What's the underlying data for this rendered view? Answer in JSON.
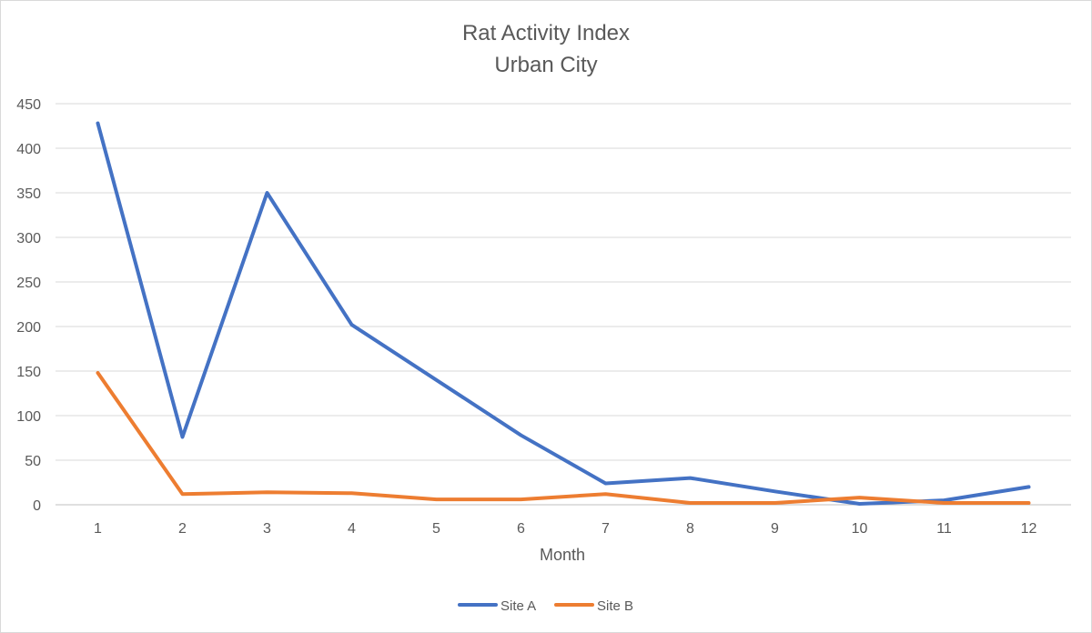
{
  "chart_data": {
    "type": "line",
    "title": "Rat Activity Index",
    "subtitle": "Urban City",
    "xlabel": "Month",
    "ylabel": "",
    "categories": [
      "1",
      "2",
      "3",
      "4",
      "5",
      "6",
      "7",
      "8",
      "9",
      "10",
      "11",
      "12"
    ],
    "ylim": [
      0,
      450
    ],
    "yticks": [
      "0",
      "50",
      "100",
      "150",
      "200",
      "250",
      "300",
      "350",
      "400",
      "450"
    ],
    "grid": true,
    "legend": "bottom",
    "series": [
      {
        "name": "Site A",
        "color": "#4472C4",
        "values": [
          428,
          76,
          350,
          202,
          140,
          78,
          24,
          30,
          15,
          1,
          5,
          20
        ]
      },
      {
        "name": "Site B",
        "color": "#ED7D31",
        "values": [
          148,
          12,
          14,
          13,
          6,
          6,
          12,
          2,
          2,
          8,
          2,
          2
        ]
      }
    ]
  }
}
